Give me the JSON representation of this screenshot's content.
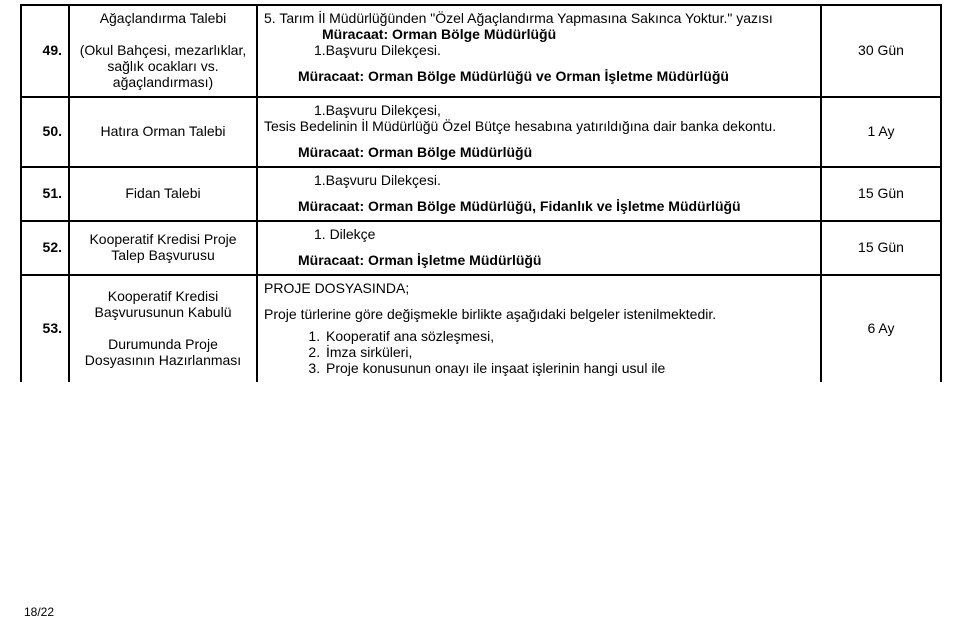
{
  "rows": [
    {
      "num": "49.",
      "name": "Ağaçlandırma Talebi\n\n(Okul Bahçesi, mezarlıklar, sağlık ocakları vs. ağaçlandırması)",
      "desc_lines": [
        {
          "text": "5.   Tarım İl Müdürlüğünden \"Özel Ağaçlandırma Yapmasına Sakınca Yoktur.\" yazısı",
          "cls": ""
        },
        {
          "text": "Müracaat: Orman Bölge Müdürlüğü",
          "cls": "b indent2"
        },
        {
          "text": "1.Başvuru Dilekçesi.",
          "cls": "indent3"
        },
        {
          "text": "Müracaat: Orman Bölge Müdürlüğü ve Orman İşletme Müdürlüğü",
          "cls": "b indent1 mtop"
        }
      ],
      "duration": "30 Gün"
    },
    {
      "num": "50.",
      "name": "Hatıra Orman Talebi",
      "desc_lines": [
        {
          "text": "1.Başvuru Dilekçesi,",
          "cls": "indent3"
        },
        {
          "text": "Tesis Bedelinin İl Müdürlüğü Özel Bütçe hesabına yatırıldığına dair banka dekontu.",
          "cls": ""
        },
        {
          "text": "Müracaat: Orman Bölge Müdürlüğü",
          "cls": "b indent1 mtop"
        }
      ],
      "duration": "1 Ay"
    },
    {
      "num": "51.",
      "name": "Fidan Talebi",
      "desc_lines": [
        {
          "text": "1.Başvuru Dilekçesi.",
          "cls": "indent3"
        },
        {
          "text": "Müracaat: Orman Bölge Müdürlüğü, Fidanlık ve İşletme Müdürlüğü",
          "cls": "b indent1 mtop"
        }
      ],
      "duration": "15 Gün"
    },
    {
      "num": "52.",
      "name": "Kooperatif Kredisi Proje Talep Başvurusu",
      "desc_lines": [
        {
          "text": "1. Dilekçe",
          "cls": "indent3"
        },
        {
          "text": "Müracaat: Orman İşletme Müdürlüğü",
          "cls": "b indent1 mtop"
        }
      ],
      "duration": "15 Gün"
    },
    {
      "num": "53.",
      "name": "Kooperatif Kredisi Başvurusunun Kabulü\n\nDurumunda Proje Dosyasının Hazırlanması",
      "desc_header": "PROJE DOSYASINDA;",
      "desc_intro": "Proje türlerine göre değişmekle birlikte aşağıdaki belgeler istenilmektedir.",
      "desc_items": [
        "Kooperatif ana sözleşmesi,",
        "İmza sirküleri,",
        "Proje konusunun onayı ile inşaat işlerinin hangi usul ile"
      ],
      "duration": "6 Ay"
    }
  ],
  "page_number": "18/22"
}
